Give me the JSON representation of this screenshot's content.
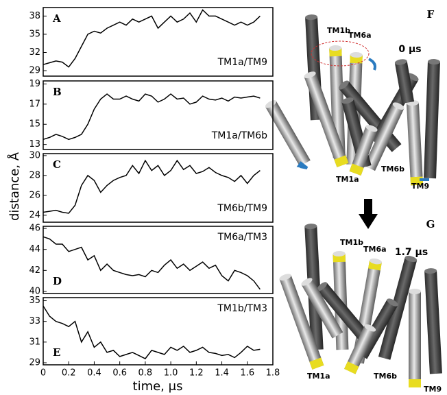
{
  "chart_data": [
    {
      "type": "line",
      "panel_label": "A",
      "annotation": "TM1a/TM9",
      "color": "#000000",
      "x": [
        0,
        0.05,
        0.1,
        0.15,
        0.2,
        0.25,
        0.3,
        0.35,
        0.4,
        0.45,
        0.5,
        0.55,
        0.6,
        0.65,
        0.7,
        0.75,
        0.8,
        0.85,
        0.9,
        0.95,
        1,
        1.05,
        1.1,
        1.15,
        1.2,
        1.25,
        1.3,
        1.35,
        1.4,
        1.45,
        1.5,
        1.55,
        1.6,
        1.65,
        1.7
      ],
      "values": [
        30,
        30.3,
        30.6,
        30.4,
        29.6,
        31,
        33,
        35,
        35.5,
        35.2,
        36,
        36.5,
        37,
        36.5,
        37.5,
        37,
        37.5,
        38,
        36,
        37,
        38,
        37,
        37.5,
        38.5,
        37,
        39,
        38,
        38,
        37.5,
        37,
        36.5,
        37,
        36.5,
        37,
        38
      ],
      "xlim": [
        0,
        1.8
      ],
      "ylim": [
        28.1,
        39.4
      ],
      "yticks": [
        29,
        32,
        35,
        38
      ]
    },
    {
      "type": "line",
      "panel_label": "B",
      "annotation": "TM1a/TM6b",
      "color": "#000000",
      "x": [
        0,
        0.05,
        0.1,
        0.15,
        0.2,
        0.25,
        0.3,
        0.35,
        0.4,
        0.45,
        0.5,
        0.55,
        0.6,
        0.65,
        0.7,
        0.75,
        0.8,
        0.85,
        0.9,
        0.95,
        1,
        1.05,
        1.1,
        1.15,
        1.2,
        1.25,
        1.3,
        1.35,
        1.4,
        1.45,
        1.5,
        1.55,
        1.6,
        1.65,
        1.7
      ],
      "values": [
        13.5,
        13.7,
        14,
        13.8,
        13.5,
        13.7,
        14,
        15,
        16.5,
        17.5,
        18,
        17.5,
        17.5,
        17.8,
        17.5,
        17.3,
        18,
        17.8,
        17.2,
        17.5,
        18,
        17.5,
        17.6,
        17,
        17.2,
        17.8,
        17.5,
        17.4,
        17.6,
        17.3,
        17.7,
        17.6,
        17.7,
        17.8,
        17.6
      ],
      "xlim": [
        0,
        1.8
      ],
      "ylim": [
        12.5,
        19.3
      ],
      "yticks": [
        13,
        15,
        17,
        19
      ]
    },
    {
      "type": "line",
      "panel_label": "C",
      "annotation": "TM6b/TM9",
      "ylabel": "distance, Å",
      "color": "#000000",
      "x": [
        0,
        0.05,
        0.1,
        0.15,
        0.2,
        0.25,
        0.3,
        0.35,
        0.4,
        0.45,
        0.5,
        0.55,
        0.6,
        0.65,
        0.7,
        0.75,
        0.8,
        0.85,
        0.9,
        0.95,
        1,
        1.05,
        1.1,
        1.15,
        1.2,
        1.25,
        1.3,
        1.35,
        1.4,
        1.45,
        1.5,
        1.55,
        1.6,
        1.65,
        1.7
      ],
      "values": [
        24.3,
        24.4,
        24.5,
        24.3,
        24.2,
        25,
        27,
        28,
        27.5,
        26.3,
        27,
        27.5,
        27.8,
        28,
        29,
        28.2,
        29.5,
        28.5,
        29,
        28,
        28.5,
        29.5,
        28.6,
        29,
        28.2,
        28.4,
        28.8,
        28.3,
        28,
        27.8,
        27.4,
        28,
        27.2,
        28,
        28.5
      ],
      "xlim": [
        0,
        1.8
      ],
      "ylim": [
        23.3,
        30.2
      ],
      "yticks": [
        24,
        26,
        28,
        30
      ]
    },
    {
      "type": "line",
      "panel_label": "D",
      "annotation": "TM6a/TM3",
      "color": "#000000",
      "x": [
        0,
        0.05,
        0.1,
        0.15,
        0.2,
        0.25,
        0.3,
        0.35,
        0.4,
        0.45,
        0.5,
        0.55,
        0.6,
        0.65,
        0.7,
        0.75,
        0.8,
        0.85,
        0.9,
        0.95,
        1,
        1.05,
        1.1,
        1.15,
        1.2,
        1.25,
        1.3,
        1.35,
        1.4,
        1.45,
        1.5,
        1.55,
        1.6,
        1.65,
        1.7
      ],
      "values": [
        45.2,
        45,
        44.5,
        44.5,
        43.8,
        44,
        44.2,
        43,
        43.4,
        42,
        42.6,
        42,
        41.8,
        41.6,
        41.5,
        41.6,
        41.4,
        42,
        41.8,
        42.5,
        43,
        42.2,
        42.6,
        42,
        42.4,
        42.8,
        42.2,
        42.5,
        41.5,
        41,
        42,
        41.8,
        41.5,
        41,
        40.2
      ],
      "xlim": [
        0,
        1.8
      ],
      "ylim": [
        39.8,
        46.2
      ],
      "yticks": [
        40,
        42,
        44,
        46
      ]
    },
    {
      "type": "line",
      "panel_label": "E",
      "annotation": "TM1b/TM3",
      "xlabel": "time, μs",
      "color": "#000000",
      "x": [
        0,
        0.05,
        0.1,
        0.15,
        0.2,
        0.25,
        0.3,
        0.35,
        0.4,
        0.45,
        0.5,
        0.55,
        0.6,
        0.65,
        0.7,
        0.75,
        0.8,
        0.85,
        0.9,
        0.95,
        1,
        1.05,
        1.1,
        1.15,
        1.2,
        1.25,
        1.3,
        1.35,
        1.4,
        1.45,
        1.5,
        1.55,
        1.6,
        1.65,
        1.7
      ],
      "values": [
        34.5,
        33.5,
        33,
        32.8,
        32.5,
        33,
        31,
        32,
        30.5,
        31,
        30,
        30.2,
        29.6,
        29.8,
        30,
        29.7,
        29.4,
        30.2,
        30,
        29.8,
        30.5,
        30.2,
        30.6,
        30,
        30.2,
        30.5,
        30,
        29.9,
        29.7,
        29.8,
        29.5,
        30,
        30.6,
        30.2,
        30.3
      ],
      "xlim": [
        0,
        1.8
      ],
      "ylim": [
        28.8,
        35.3
      ],
      "yticks": [
        29,
        31,
        33,
        35
      ],
      "xticks": [
        0,
        0.2,
        0.4,
        0.6,
        0.8,
        {
          "value": 1,
          "label": "1.0"
        },
        1.2,
        1.4,
        1.6,
        1.8
      ]
    }
  ],
  "structures": [
    {
      "panel": "F",
      "time": "0 μs",
      "labels": [
        "TM1b",
        "TM6a",
        "TM6b",
        "TM1a",
        "TM9"
      ]
    },
    {
      "panel": "G",
      "time": "1.7 μs",
      "labels": [
        "TM1b",
        "TM6a",
        "TM1a",
        "TM6b",
        "TM9"
      ]
    }
  ]
}
